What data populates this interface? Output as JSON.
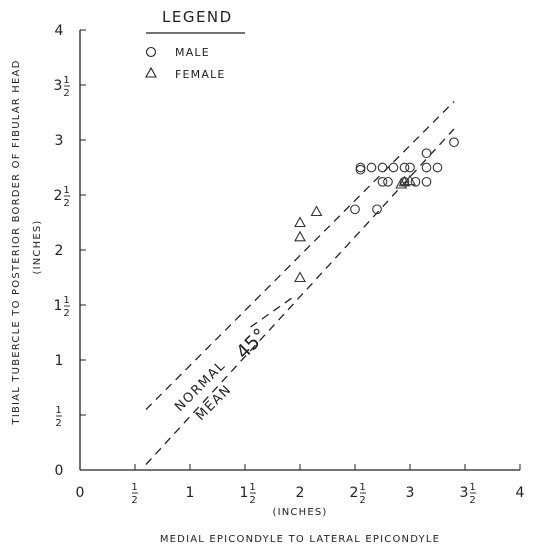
{
  "chart_data": {
    "type": "scatter",
    "title": "",
    "xlabel": "MEDIAL EPICONDYLE TO LATERAL EPICONDYLE",
    "xunit": "(INCHES)",
    "ylabel": "TIBIAL TUBERCLE TO POSTERIOR BORDER OF FIBULAR HEAD",
    "yunit": "(INCHES)",
    "xlim": [
      0,
      4
    ],
    "ylim": [
      0,
      4
    ],
    "xticks": [
      {
        "value": 0,
        "label": "0"
      },
      {
        "value": 0.5,
        "label": "1/2"
      },
      {
        "value": 1,
        "label": "1"
      },
      {
        "value": 1.5,
        "label": "1 1/2"
      },
      {
        "value": 2,
        "label": "2"
      },
      {
        "value": 2.5,
        "label": "2 1/2"
      },
      {
        "value": 3,
        "label": "3"
      },
      {
        "value": 3.5,
        "label": "3 1/2"
      },
      {
        "value": 4,
        "label": "4"
      }
    ],
    "yticks": [
      {
        "value": 0,
        "label": "0"
      },
      {
        "value": 0.5,
        "label": "1/2"
      },
      {
        "value": 1,
        "label": "1"
      },
      {
        "value": 1.5,
        "label": "1 1/2"
      },
      {
        "value": 2,
        "label": "2"
      },
      {
        "value": 2.5,
        "label": "2 1/2"
      },
      {
        "value": 3,
        "label": "3"
      },
      {
        "value": 3.5,
        "label": "3 1/2"
      },
      {
        "value": 4,
        "label": "4"
      }
    ],
    "legend": {
      "title": "LEGEND",
      "position": "top-left",
      "entries": [
        {
          "marker": "circle",
          "label": "MALE"
        },
        {
          "marker": "triangle",
          "label": "FEMALE"
        }
      ]
    },
    "series": [
      {
        "name": "MALE",
        "marker": "circle",
        "points": [
          [
            2.55,
            2.75
          ],
          [
            2.55,
            2.73
          ],
          [
            2.65,
            2.75
          ],
          [
            2.75,
            2.75
          ],
          [
            2.85,
            2.75
          ],
          [
            2.95,
            2.75
          ],
          [
            3.15,
            2.75
          ],
          [
            3.25,
            2.75
          ],
          [
            2.75,
            2.62
          ],
          [
            2.8,
            2.62
          ],
          [
            2.95,
            2.62
          ],
          [
            3.05,
            2.62
          ],
          [
            3.15,
            2.62
          ],
          [
            2.5,
            2.37
          ],
          [
            2.7,
            2.37
          ],
          [
            3.15,
            2.88
          ],
          [
            3.4,
            2.98
          ],
          [
            3.0,
            2.75
          ]
        ]
      },
      {
        "name": "FEMALE",
        "marker": "triangle",
        "points": [
          [
            2.0,
            2.25
          ],
          [
            2.0,
            2.12
          ],
          [
            2.15,
            2.35
          ],
          [
            2.0,
            1.75
          ],
          [
            2.95,
            2.62
          ],
          [
            3.0,
            2.63
          ],
          [
            2.92,
            2.6
          ]
        ]
      }
    ],
    "reference_lines": [
      {
        "type": "dashed",
        "from": [
          0.6,
          0.55
        ],
        "to": [
          3.4,
          3.35
        ]
      },
      {
        "type": "dashed",
        "from": [
          0.6,
          0.05
        ],
        "to": [
          3.4,
          3.1
        ]
      }
    ],
    "annotations": {
      "normal": "NORMAL",
      "mean": "MEAN",
      "angle": "45°"
    },
    "grid": false
  }
}
